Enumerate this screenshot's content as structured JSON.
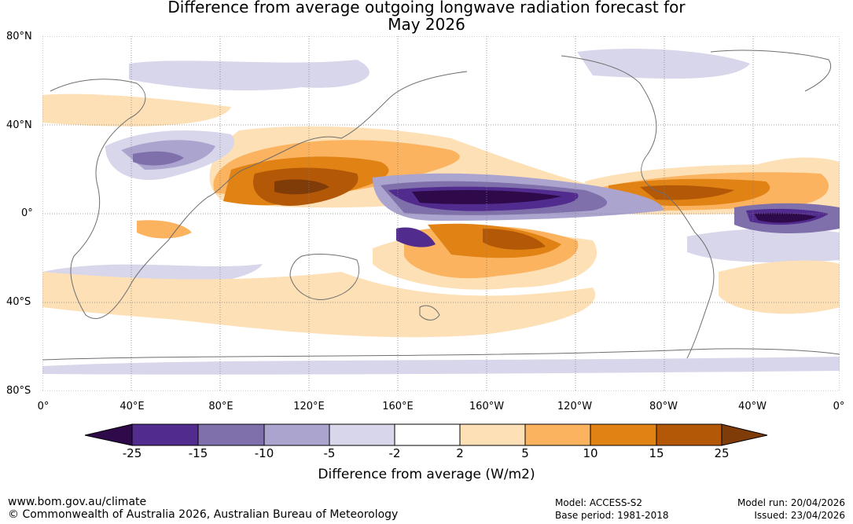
{
  "title": {
    "line1": "Difference from average outgoing longwave radiation forecast for",
    "line2": "May 2026"
  },
  "axes": {
    "lat_labels": [
      "80°N",
      "40°N",
      "0°",
      "40°S",
      "80°S"
    ],
    "lon_labels": [
      "0°",
      "40°E",
      "80°E",
      "120°E",
      "160°E",
      "160°W",
      "120°W",
      "80°W",
      "40°W",
      "0°"
    ]
  },
  "colorbar": {
    "title": "Difference from average (W/m2)",
    "ticks": [
      "-25",
      "-15",
      "-10",
      "-5",
      "-2",
      "2",
      "5",
      "10",
      "15",
      "25"
    ],
    "colors": {
      "lt_-25": "#2e0a4a",
      "-25_-15": "#522b8e",
      "-15_-10": "#7f70ab",
      "-10_-5": "#aba4cf",
      "-5_-2": "#d8d6ea",
      "-2_2": "#ffffff",
      "2_5": "#fde0b6",
      "5_10": "#fbb35f",
      "10_15": "#e08214",
      "15_25": "#b35806",
      "gt_25": "#7f3b08"
    }
  },
  "footer": {
    "url": "www.bom.gov.au/climate",
    "copyright": "© Commonwealth of Australia 2026, Australian Bureau of Meteorology",
    "model": "Model: ACCESS-S2",
    "base_period": "Base period: 1981-2018",
    "model_run": "Model run: 20/04/2026",
    "issued": "Issued: 23/04/2026"
  }
}
